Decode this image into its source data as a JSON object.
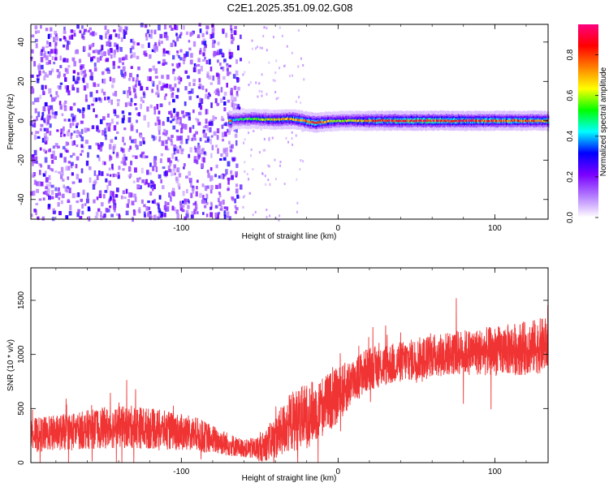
{
  "title": "C2E1.2025.351.09.02.G08",
  "chart_data": [
    {
      "type": "heatmap",
      "xlabel": "Height of straight line (km)",
      "ylabel": "Frequency (Hz)",
      "xlim": [
        -196,
        134
      ],
      "ylim": [
        -50,
        49
      ],
      "x_ticks": [
        -100,
        0,
        100
      ],
      "y_ticks": [
        -40,
        -20,
        0,
        20,
        40
      ],
      "colorbar": {
        "label": "Normalized spectral amplitude",
        "range": [
          0,
          0.95
        ],
        "ticks": [
          0.0,
          0.2,
          0.4,
          0.6,
          0.8
        ],
        "colors": [
          "#ffffff",
          "#b47cff",
          "#7a00ff",
          "#0000ff",
          "#00ffff",
          "#00ff00",
          "#ffff00",
          "#ff8000",
          "#ff0000",
          "#ff0080"
        ]
      },
      "noise_region_x": [
        -196,
        -62
      ],
      "signal_band": {
        "x": [
          -70,
          134
        ],
        "center_hz": [
          0,
          0
        ],
        "description_points": [
          {
            "x": -68,
            "hz": 0.5,
            "amp": 0.45
          },
          {
            "x": -55,
            "hz": 1.0,
            "amp": 0.6
          },
          {
            "x": -40,
            "hz": 0.5,
            "amp": 0.7
          },
          {
            "x": -30,
            "hz": 1.0,
            "amp": 0.75
          },
          {
            "x": -15,
            "hz": -1.0,
            "amp": 0.85
          },
          {
            "x": 0,
            "hz": 0.0,
            "amp": 0.6
          },
          {
            "x": 30,
            "hz": 0.0,
            "amp": 0.85
          },
          {
            "x": 60,
            "hz": 0.0,
            "amp": 0.9
          },
          {
            "x": 90,
            "hz": 0.0,
            "amp": 0.85
          },
          {
            "x": 120,
            "hz": 0.0,
            "amp": 0.8
          }
        ]
      }
    },
    {
      "type": "line",
      "xlabel": "Height of straight line (km)",
      "ylabel": "SNR (10 * v/v)",
      "xlim": [
        -196,
        134
      ],
      "ylim": [
        0,
        1800
      ],
      "x_ticks": [
        -100,
        0,
        100
      ],
      "y_ticks": [
        0,
        500,
        1000,
        1500
      ],
      "color": "#f03333",
      "envelope": {
        "x": [
          -196,
          -170,
          -150,
          -130,
          -110,
          -90,
          -70,
          -60,
          -50,
          -40,
          -30,
          -20,
          -10,
          0,
          10,
          20,
          40,
          60,
          80,
          100,
          120,
          134
        ],
        "mean": [
          250,
          290,
          320,
          330,
          300,
          260,
          170,
          130,
          130,
          230,
          380,
          430,
          520,
          620,
          770,
          870,
          930,
          990,
          1020,
          1030,
          1060,
          1090
        ],
        "spread": [
          160,
          170,
          190,
          200,
          180,
          160,
          110,
          80,
          120,
          200,
          280,
          300,
          280,
          260,
          220,
          200,
          190,
          200,
          210,
          230,
          250,
          260
        ]
      }
    }
  ]
}
